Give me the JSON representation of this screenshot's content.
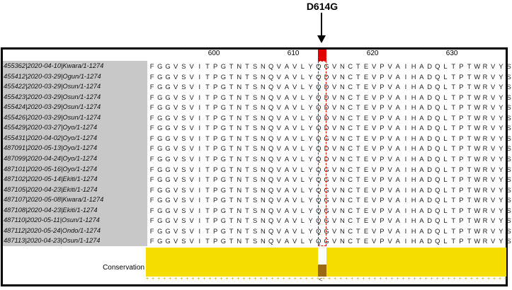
{
  "annotation": {
    "label": "D614G"
  },
  "ruler": {
    "numbers": [
      {
        "label": "600",
        "col": 9
      },
      {
        "label": "610",
        "col": 19
      },
      {
        "label": "620",
        "col": 29
      },
      {
        "label": "630",
        "col": 39
      }
    ]
  },
  "sequences": [
    {
      "name": "455362|2020-04-10|Kwara/1-1274",
      "residues": "FGGVSVITPGTNTSNQVAVLYQGVNCTEVPVAIHADQLTPTWRVYS"
    },
    {
      "name": "455412|2020-03-29|Ogun/1-1274",
      "residues": "FGGVSVITPGTNTSNQVAVLYQDVNCTEVPVAIHADQLTPTWRVYS"
    },
    {
      "name": "455422|2020-03-29|Osun/1-1274",
      "residues": "FGGVSVITPGTNTSNQVAVLYQDVNCTEVPVAIHADQLTPTWRVYS"
    },
    {
      "name": "455423|2020-03-29|Osun/1-1274",
      "residues": "FGGVSVITPGTNTSNQVAVLYQDVNCTEVPVAIHADQLTPTWRVYS"
    },
    {
      "name": "455424|2020-03-29|Osun/1-1274",
      "residues": "FGGVSVITPGTNTSNQVAVLYQDVNCTEVPVAIHADQLTPTWRVYS"
    },
    {
      "name": "455426|2020-03-29|Osun/1-1274",
      "residues": "FGGVSVITPGTNTSNQVAVLYQDVNCTEVPVAIHADQLTPTWRVYS"
    },
    {
      "name": "455429|2020-03-27|Oyo/1-1274",
      "residues": "FGGVSVITPGTNTSNQVAVLYQDVNCTEVPVAIHADQLTPTWRVYS"
    },
    {
      "name": "455431|2020-04-02|Oyo/1-1274",
      "residues": "FGGVSVITPGTNTSNQVAVLYQGVNCTEVPVAIHADQLTPTWRVYS"
    },
    {
      "name": "487091|2020-05-13|Oyo/1-1274",
      "residues": "FGGVSVITPGTNTSNQVAVLYQDVNCTEVPVAIHADQLTPTWRVYS"
    },
    {
      "name": "487099|2020-04-24|Oyo/1-1274",
      "residues": "FGGVSVITPGTNTSNQVAVLYQDVNCTEVPVAIHADQLTPTWRVYS"
    },
    {
      "name": "487101|2020-05-16|Oyo/1-1274",
      "residues": "FGGVSVITPGTNTSNQVAVLYQGVNCTEVPVAIHADQLTPTWRVYS"
    },
    {
      "name": "487102|2020-05-14|Ekiti/1-1274",
      "residues": "FGGVSVITPGTNTSNQVAVLYQGVNCTEVPVAIHADQLTPTWRVYS"
    },
    {
      "name": "487105|2020-04-23|Ekiti/1-1274",
      "residues": "FGGVSVITPGTNTSNQVAVLYQGVNCTEVPVAIHADQLTPTWRVYS"
    },
    {
      "name": "487107|2020-05-08|Kwara/1-1274",
      "residues": "FGGVSVITPGTNTSNQVAVLYQGVNCTEVPVAIHADQLTPTWRVYS"
    },
    {
      "name": "487108|2020-04-23|Ekiti/1-1274",
      "residues": "FGGVSVITPGTNTSNQVAVLYQGVNCTEVPVAIHADQLTPTWRVYS"
    },
    {
      "name": "487110|2020-05-11|Osun/1-1274",
      "residues": "FGGVSVITPGTNTSNQVAVLYQGVNCTEVPVAIHADQLTPTWRVYS"
    },
    {
      "name": "487112|2020-05-24|Ondo/1-1274",
      "residues": "FGGVSVITPGTNTSNQVAVLYQGVNCTEVPVAIHADQLTPTWRVYS"
    },
    {
      "name": "487113|2020-04-23|Osun/1-1274",
      "residues": "FGGVSVITPGTNTSNQVAVLYQGVNCTEVPVAIHADQLTPTWRVYS"
    }
  ],
  "conservation": {
    "label": "Conservation",
    "mark": "<",
    "colors": {
      "high": "#f5dd00",
      "low": "#9b6a10"
    }
  },
  "colors": {
    "highlight": "#e00000",
    "name_panel": "#c8c8c8"
  }
}
